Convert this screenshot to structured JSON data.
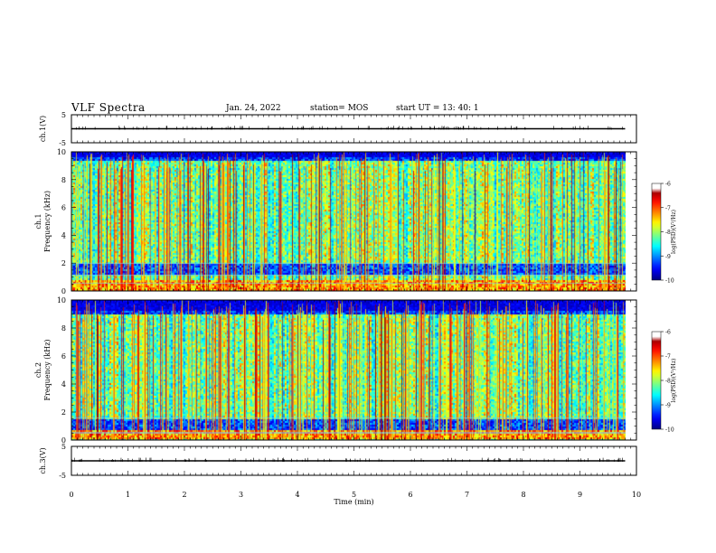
{
  "header": {
    "title": "VLF Spectra",
    "date": "Jan. 24, 2022",
    "station": "station= MOS",
    "start": "start  UT =   13: 40: 1"
  },
  "chart_data": [
    {
      "type": "line",
      "panel": "ch1-voltage",
      "ylabel": "ch.1(V)",
      "ylim": [
        -5,
        5
      ],
      "yticks": [
        "5",
        "-5"
      ],
      "series": [
        {
          "x": [
            0,
            9.8
          ],
          "values": [
            0,
            0
          ]
        }
      ]
    },
    {
      "type": "heatmap",
      "panel": "ch1-spectrogram",
      "ylabel_line1": "ch.1",
      "ylabel_line2": "Frequency (kHz)",
      "ylim": [
        0,
        10
      ],
      "yticks": [
        "0",
        "2",
        "4",
        "6",
        "8",
        "10"
      ],
      "xlim": [
        0,
        10
      ],
      "data_extent_x": 9.8,
      "colorbar": {
        "label": "log(PSD)(V²/Hz)",
        "ticks": [
          "-6",
          "-7",
          "-8",
          "-9",
          "-10"
        ],
        "range": [
          -10,
          -6
        ]
      },
      "features": {
        "noise_band_khz": [
          1.2,
          2.0
        ],
        "strong_low_khz": 0.6,
        "emission_top_khz": 9.4
      }
    },
    {
      "type": "heatmap",
      "panel": "ch2-spectrogram",
      "ylabel_line1": "ch.2",
      "ylabel_line2": "Frequency (kHz)",
      "ylim": [
        0,
        10
      ],
      "yticks": [
        "0",
        "2",
        "4",
        "6",
        "8",
        "10"
      ],
      "xlim": [
        0,
        10
      ],
      "data_extent_x": 9.8,
      "colorbar": {
        "label": "log(PSD)(V²/Hz)",
        "ticks": [
          "-6",
          "-7",
          "-8",
          "-9",
          "-10"
        ],
        "range": [
          -10,
          -6
        ]
      },
      "features": {
        "noise_band_khz": [
          0.6,
          1.6
        ],
        "strong_low_khz": 0.5,
        "emission_top_khz": 9.0
      }
    },
    {
      "type": "line",
      "panel": "ch3-voltage",
      "ylabel": "ch.3(V)",
      "ylim": [
        -5,
        5
      ],
      "yticks": [
        "5",
        "-5"
      ],
      "xlabel": "Time  (min)",
      "xticks": [
        "0",
        "1",
        "2",
        "3",
        "4",
        "5",
        "6",
        "7",
        "8",
        "9",
        "10"
      ],
      "series": [
        {
          "x": [
            0,
            9.8
          ],
          "values": [
            0,
            0
          ]
        }
      ]
    }
  ]
}
